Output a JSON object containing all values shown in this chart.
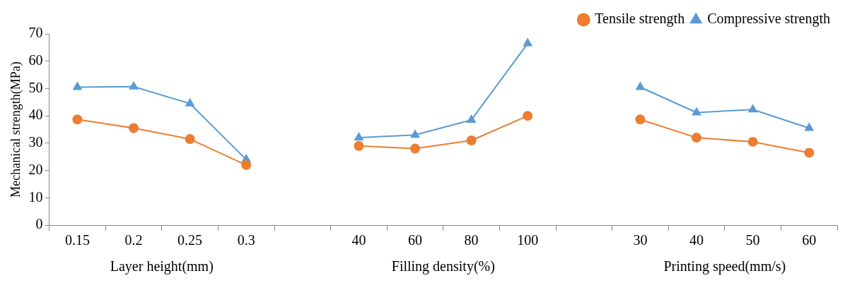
{
  "chart_data": {
    "type": "line",
    "ylabel": "Mechanical strength(MPa)",
    "categories": [
      "0.15",
      "0.2",
      "0.25",
      "0.3",
      null,
      "40",
      "60",
      "80",
      "100",
      null,
      "30",
      "40",
      "50",
      "60"
    ],
    "series": [
      {
        "name": "Tensile strength",
        "color": "#ed7d31",
        "marker": "circle",
        "values": [
          38.7,
          35.5,
          31.5,
          22,
          null,
          29,
          28,
          31,
          40,
          null,
          38.7,
          32,
          30.5,
          26.5
        ]
      },
      {
        "name": "Compressive strength",
        "color": "#5b9bd5",
        "marker": "triangle",
        "values": [
          50.5,
          50.7,
          44.5,
          24,
          null,
          32,
          33,
          38.5,
          66.5,
          null,
          50.5,
          41.2,
          42.3,
          35.5
        ]
      }
    ],
    "ylim": [
      0,
      70
    ],
    "yticks": [
      0,
      10,
      20,
      30,
      40,
      50,
      60,
      70
    ],
    "grid": false,
    "legend": "top right",
    "annotations": [
      "Layer height(mm)",
      "Filling density(%)",
      "Printing speed(mm/s)"
    ]
  }
}
